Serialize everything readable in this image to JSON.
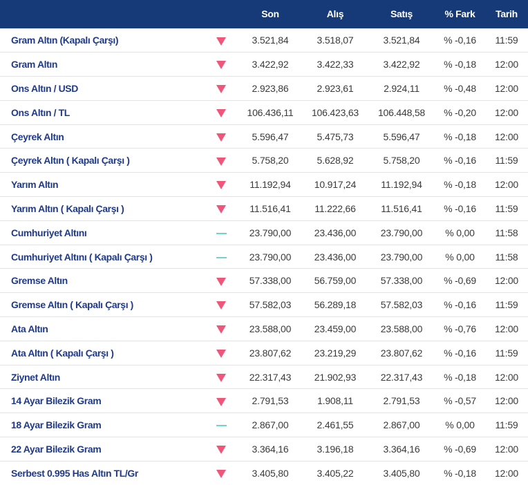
{
  "headers": {
    "name": "",
    "son": "Son",
    "alis": "Alış",
    "satis": "Satış",
    "fark": "% Fark",
    "tarih": "Tarih"
  },
  "rows": [
    {
      "name": "Gram Altın (Kapalı Çarşı)",
      "trend": "down-arrow-icon",
      "son": "3.521,84",
      "alis": "3.518,07",
      "satis": "3.521,84",
      "fark": "% -0,16",
      "tarih": "11:59"
    },
    {
      "name": "Gram Altın",
      "trend": "down-arrow-icon",
      "son": "3.422,92",
      "alis": "3.422,33",
      "satis": "3.422,92",
      "fark": "% -0,18",
      "tarih": "12:00"
    },
    {
      "name": "Ons Altın / USD",
      "trend": "down-arrow-icon",
      "son": "2.923,86",
      "alis": "2.923,61",
      "satis": "2.924,11",
      "fark": "% -0,48",
      "tarih": "12:00"
    },
    {
      "name": "Ons Altın / TL",
      "trend": "down-arrow-icon",
      "son": "106.436,11",
      "alis": "106.423,63",
      "satis": "106.448,58",
      "fark": "% -0,20",
      "tarih": "12:00"
    },
    {
      "name": "Çeyrek Altın",
      "trend": "down-arrow-icon",
      "son": "5.596,47",
      "alis": "5.475,73",
      "satis": "5.596,47",
      "fark": "% -0,18",
      "tarih": "12:00"
    },
    {
      "name": "Çeyrek Altın ( Kapalı Çarşı )",
      "trend": "down-arrow-icon",
      "son": "5.758,20",
      "alis": "5.628,92",
      "satis": "5.758,20",
      "fark": "% -0,16",
      "tarih": "11:59"
    },
    {
      "name": "Yarım Altın",
      "trend": "down-arrow-icon",
      "son": "11.192,94",
      "alis": "10.917,24",
      "satis": "11.192,94",
      "fark": "% -0,18",
      "tarih": "12:00"
    },
    {
      "name": "Yarım Altın ( Kapalı Çarşı )",
      "trend": "down-arrow-icon",
      "son": "11.516,41",
      "alis": "11.222,66",
      "satis": "11.516,41",
      "fark": "% -0,16",
      "tarih": "11:59"
    },
    {
      "name": "Cumhuriyet Altını",
      "trend": "dash-icon",
      "son": "23.790,00",
      "alis": "23.436,00",
      "satis": "23.790,00",
      "fark": "% 0,00",
      "tarih": "11:58"
    },
    {
      "name": "Cumhuriyet Altını ( Kapalı Çarşı )",
      "trend": "dash-icon",
      "son": "23.790,00",
      "alis": "23.436,00",
      "satis": "23.790,00",
      "fark": "% 0,00",
      "tarih": "11:58"
    },
    {
      "name": "Gremse Altın",
      "trend": "down-arrow-icon",
      "son": "57.338,00",
      "alis": "56.759,00",
      "satis": "57.338,00",
      "fark": "% -0,69",
      "tarih": "12:00"
    },
    {
      "name": "Gremse Altın ( Kapalı Çarşı )",
      "trend": "down-arrow-icon",
      "son": "57.582,03",
      "alis": "56.289,18",
      "satis": "57.582,03",
      "fark": "% -0,16",
      "tarih": "11:59"
    },
    {
      "name": "Ata Altın",
      "trend": "down-arrow-icon",
      "son": "23.588,00",
      "alis": "23.459,00",
      "satis": "23.588,00",
      "fark": "% -0,76",
      "tarih": "12:00"
    },
    {
      "name": "Ata Altın ( Kapalı Çarşı )",
      "trend": "down-arrow-icon",
      "son": "23.807,62",
      "alis": "23.219,29",
      "satis": "23.807,62",
      "fark": "% -0,16",
      "tarih": "11:59"
    },
    {
      "name": "Ziynet Altın",
      "trend": "down-arrow-icon",
      "son": "22.317,43",
      "alis": "21.902,93",
      "satis": "22.317,43",
      "fark": "% -0,18",
      "tarih": "12:00"
    },
    {
      "name": "14 Ayar Bilezik Gram",
      "trend": "down-arrow-icon",
      "son": "2.791,53",
      "alis": "1.908,11",
      "satis": "2.791,53",
      "fark": "% -0,57",
      "tarih": "12:00"
    },
    {
      "name": "18 Ayar Bilezik Gram",
      "trend": "dash-icon",
      "son": "2.867,00",
      "alis": "2.461,55",
      "satis": "2.867,00",
      "fark": "% 0,00",
      "tarih": "11:59"
    },
    {
      "name": "22 Ayar Bilezik Gram",
      "trend": "down-arrow-icon",
      "son": "3.364,16",
      "alis": "3.196,18",
      "satis": "3.364,16",
      "fark": "% -0,69",
      "tarih": "12:00"
    },
    {
      "name": "Serbest 0.995 Has Altın TL/Gr",
      "trend": "down-arrow-icon",
      "son": "3.405,80",
      "alis": "3.405,22",
      "satis": "3.405,80",
      "fark": "% -0,18",
      "tarih": "12:00"
    }
  ],
  "colors": {
    "header_bg": "#163a78",
    "name_text": "#1f3a8a",
    "down_arrow": "#f0567a",
    "neutral_dash": "#6fd4cf"
  }
}
